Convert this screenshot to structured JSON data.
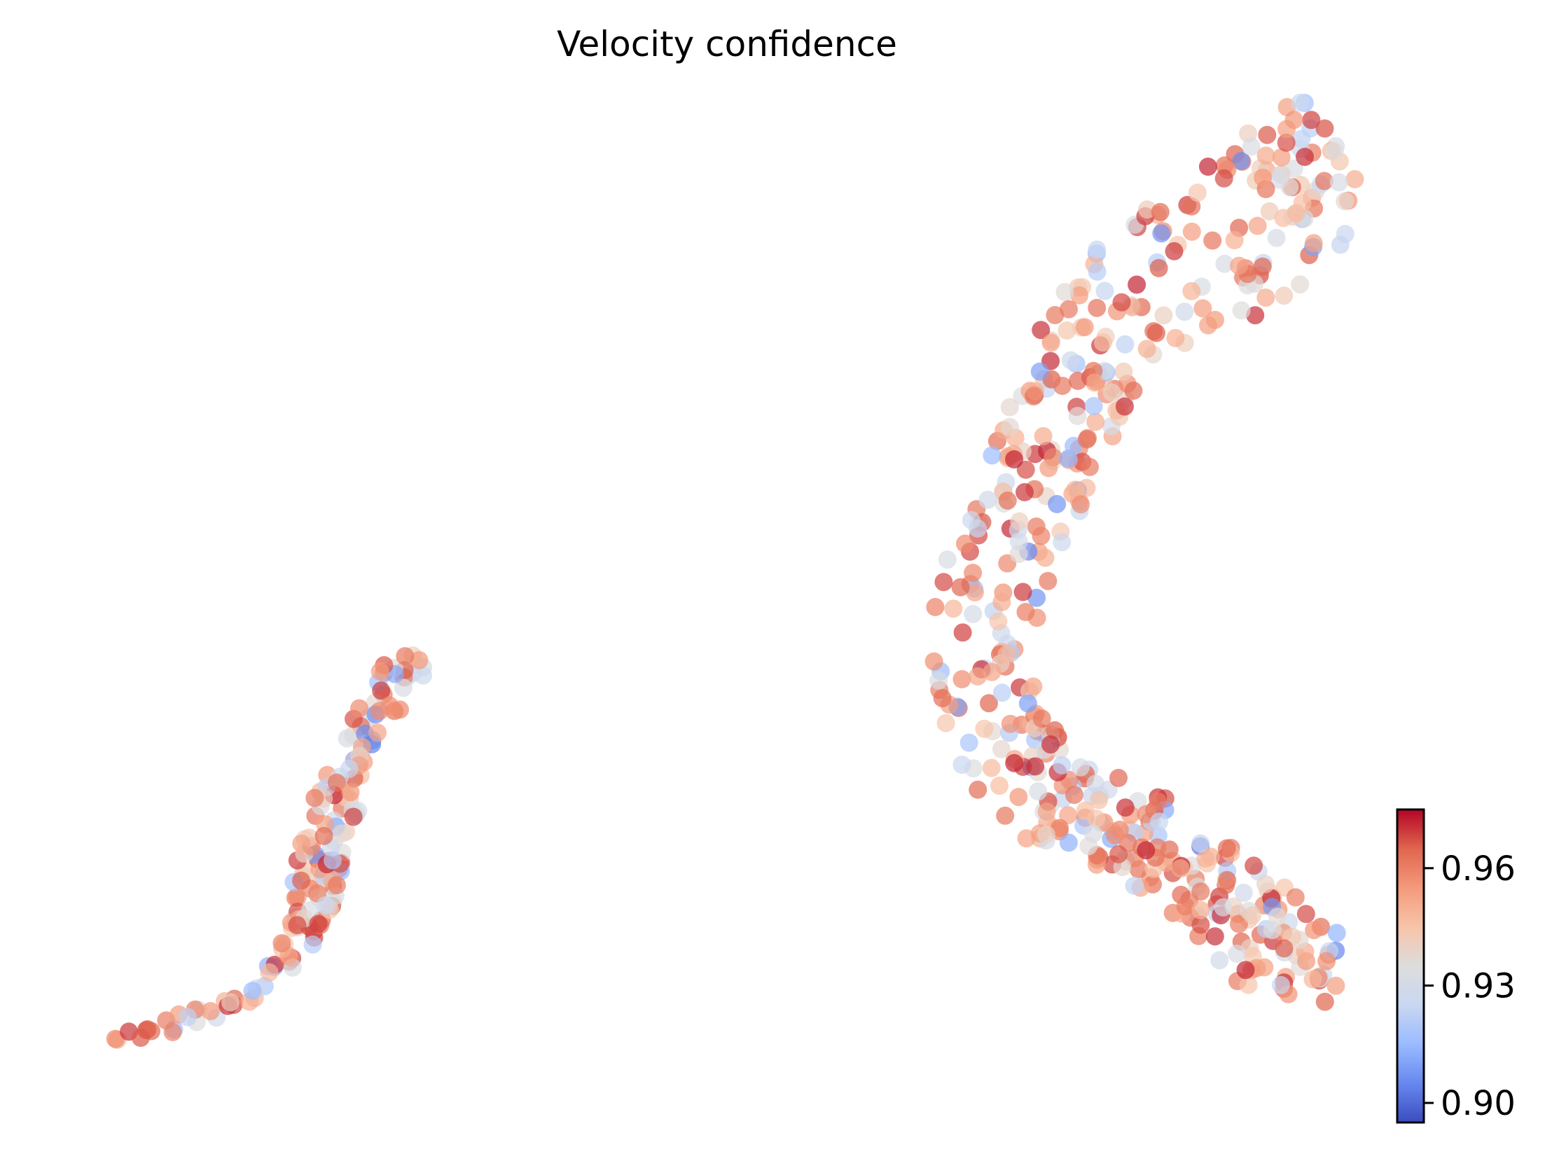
{
  "chart_data": {
    "type": "scatter",
    "title": "Velocity confidence",
    "xlabel": "",
    "ylabel": "",
    "axes_visible": false,
    "grid": false,
    "colormap": "coolwarm",
    "colorbar": {
      "min": 0.895,
      "max": 0.975,
      "ticks": [
        0.9,
        0.93,
        0.96
      ],
      "tick_labels": [
        "0.90",
        "0.93",
        "0.96"
      ],
      "placement": "right",
      "stops": [
        "#3b4cc0",
        "#6788ee",
        "#9abbff",
        "#c9d7f0",
        "#dddddd",
        "#f7c4a9",
        "#f49a7b",
        "#e0654f",
        "#b40426"
      ]
    },
    "seed": 12345,
    "cluster_left": {
      "n_points": 170,
      "outline": [
        [
          0.2,
          9.9
        ],
        [
          0.6,
          10.05
        ],
        [
          1.1,
          10.15
        ],
        [
          1.6,
          10.25
        ],
        [
          2.0,
          10.55
        ],
        [
          2.3,
          11.6
        ],
        [
          2.7,
          12.2
        ],
        [
          3.2,
          12.85
        ],
        [
          3.5,
          13.0
        ],
        [
          3.7,
          12.75
        ],
        [
          3.5,
          12.5
        ],
        [
          3.1,
          12.3
        ],
        [
          2.9,
          11.7
        ],
        [
          2.7,
          11.2
        ],
        [
          2.6,
          10.9
        ],
        [
          2.2,
          10.4
        ],
        [
          1.5,
          10.1
        ],
        [
          0.5,
          9.85
        ]
      ]
    },
    "cluster_right": {
      "n_points": 520,
      "path": [
        [
          13.4,
          10.35
        ],
        [
          12.8,
          10.6
        ],
        [
          12.2,
          10.95
        ],
        [
          11.6,
          11.35
        ],
        [
          11.0,
          11.5
        ],
        [
          10.5,
          11.75
        ],
        [
          10.0,
          11.95
        ],
        [
          9.7,
          12.4
        ],
        [
          9.55,
          12.9
        ],
        [
          9.75,
          13.4
        ],
        [
          10.05,
          13.95
        ],
        [
          10.4,
          14.55
        ],
        [
          10.7,
          15.05
        ],
        [
          11.2,
          15.5
        ],
        [
          11.8,
          15.85
        ],
        [
          12.4,
          16.05
        ],
        [
          13.0,
          16.35
        ],
        [
          13.4,
          16.75
        ]
      ],
      "half_width": [
        0.35,
        0.45,
        0.45,
        0.4,
        0.4,
        0.45,
        0.5,
        0.55,
        0.55,
        0.55,
        0.55,
        0.55,
        0.55,
        0.6,
        0.55,
        0.65,
        0.65,
        0.6
      ]
    },
    "xlim": [
      -0.2,
      14.0
    ],
    "ylim": [
      9.5,
      17.0
    ]
  }
}
